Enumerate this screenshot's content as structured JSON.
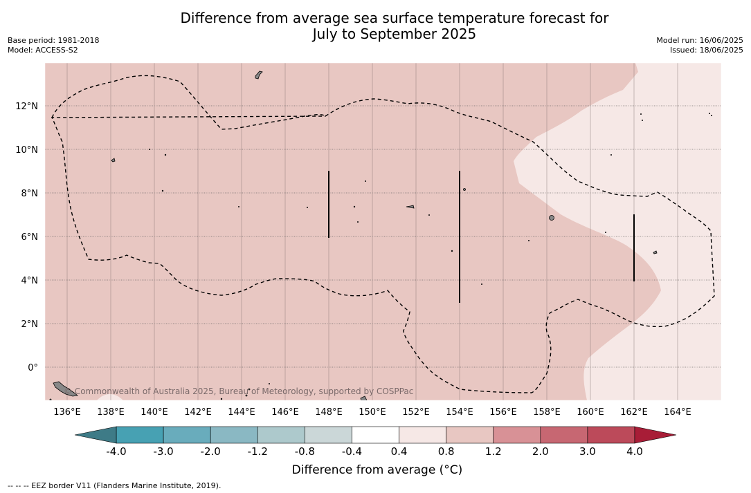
{
  "title_line1": "Difference from average sea surface temperature forecast for",
  "title_line2": "July to September 2025",
  "base_period": "Base period: 1981-2018",
  "model": "Model: ACCESS-S2",
  "model_run": "Model run: 16/06/2025",
  "issued": "Issued: 18/06/2025",
  "copyright": "© Commonwealth of Australia 2025, Bureau of Meteorology, supported by COSPPac",
  "x_ticks": [
    "136°E",
    "138°E",
    "140°E",
    "142°E",
    "144°E",
    "146°E",
    "148°E",
    "150°E",
    "152°E",
    "154°E",
    "156°E",
    "158°E",
    "160°E",
    "162°E",
    "164°E"
  ],
  "y_ticks": [
    "12°N",
    "10°N",
    "8°N",
    "6°N",
    "4°N",
    "2°N",
    "0°"
  ],
  "colorbar": {
    "title": "Difference from average (°C)",
    "tick_labels": [
      "-4.0",
      "-3.0",
      "-2.0",
      "-1.2",
      "-0.8",
      "-0.4",
      "0.4",
      "0.8",
      "1.2",
      "2.0",
      "3.0",
      "4.0"
    ],
    "colors": {
      "under": "#3e7b87",
      "bins": [
        "#47a1b3",
        "#69acbc",
        "#8ab8c3",
        "#adc9cc",
        "#cbd7d8",
        "#ffffff",
        "#f6e8e6",
        "#e8c7c2",
        "#d89196",
        "#c76772",
        "#bc4a5a"
      ],
      "over": "#a81d37"
    }
  },
  "footnote": "--  --  -- EEZ border V11 (Flanders Marine Institute, 2019)."
}
